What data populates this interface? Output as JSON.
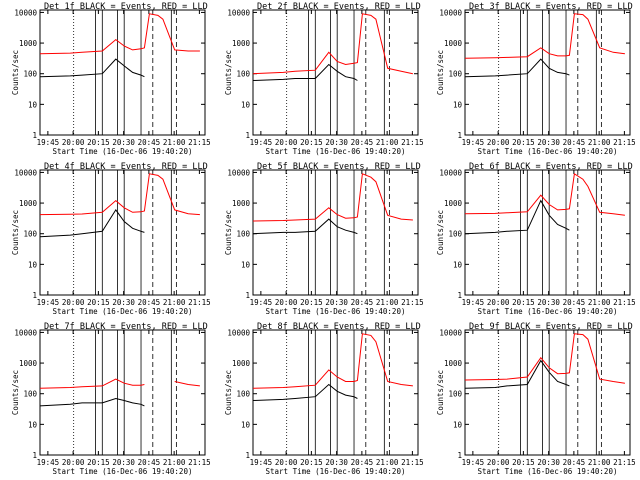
{
  "chart_data": {
    "type": "line",
    "figure": {
      "ylabel": "Counts/sec",
      "xlabel": "Start Time (16-Dec-06 19:40:20)",
      "yticks": [
        "1",
        "10",
        "100",
        "1000",
        "10000"
      ],
      "ylim": [
        1,
        12000
      ],
      "yscale": "log",
      "xticks": [
        "19:45",
        "20:00",
        "20:15",
        "20:30",
        "20:45",
        "21:00",
        "21:15"
      ],
      "xlim_minutes_after_start": [
        0,
        98
      ],
      "colors": {
        "events": "#000000",
        "lld": "#ff0000"
      }
    },
    "panels": [
      {
        "title": "Det 1f BLACK = Events, RED = LLD",
        "xlabel": "Start Time (16-Dec-06 19:40:20)",
        "x": [
          0,
          18,
          25,
          37,
          45,
          50,
          55,
          60,
          62,
          65,
          70,
          73,
          80,
          88,
          95
        ],
        "events": [
          80,
          85,
          90,
          100,
          300,
          180,
          110,
          90,
          80,
          null,
          null,
          null,
          null,
          null,
          null
        ],
        "lld": [
          450,
          470,
          500,
          550,
          1300,
          800,
          600,
          650,
          700,
          9000,
          8000,
          6000,
          600,
          550,
          550
        ]
      },
      {
        "title": "Det 2f BLACK = Events, RED = LLD",
        "xlabel": "Start Time (16-Dec-06 19:40:20)",
        "x": [
          0,
          18,
          25,
          37,
          45,
          50,
          55,
          60,
          62,
          65,
          70,
          73,
          80,
          88,
          95
        ],
        "events": [
          60,
          65,
          70,
          70,
          200,
          120,
          80,
          70,
          60,
          null,
          null,
          null,
          null,
          null,
          null
        ],
        "lld": [
          100,
          110,
          120,
          130,
          500,
          250,
          200,
          220,
          230,
          9000,
          8000,
          6000,
          150,
          120,
          100
        ]
      },
      {
        "title": "Det 3f BLACK = Events, RED = LLD",
        "xlabel": "Start Time (16-Dec-06 19:40:20)",
        "x": [
          0,
          18,
          25,
          37,
          45,
          50,
          55,
          60,
          62,
          65,
          70,
          73,
          80,
          88,
          95
        ],
        "events": [
          80,
          85,
          90,
          100,
          300,
          150,
          110,
          100,
          90,
          null,
          null,
          null,
          null,
          null,
          null
        ],
        "lld": [
          320,
          330,
          340,
          360,
          700,
          450,
          380,
          380,
          400,
          9000,
          8500,
          6000,
          700,
          500,
          450
        ]
      },
      {
        "title": "Det 4f BLACK = Events, RED = LLD",
        "xlabel": "Start Time (16-Dec-06 19:40:20)",
        "x": [
          0,
          18,
          25,
          37,
          45,
          50,
          55,
          60,
          62,
          65,
          70,
          73,
          80,
          88,
          95
        ],
        "events": [
          80,
          90,
          100,
          120,
          600,
          250,
          150,
          120,
          110,
          null,
          null,
          null,
          null,
          null,
          null
        ],
        "lld": [
          420,
          430,
          440,
          500,
          1200,
          700,
          500,
          520,
          550,
          9000,
          8000,
          6000,
          600,
          450,
          420
        ]
      },
      {
        "title": "Det 5f BLACK = Events, RED = LLD",
        "xlabel": "Start Time (16-Dec-06 19:40:20)",
        "x": [
          0,
          18,
          25,
          37,
          45,
          50,
          55,
          60,
          62,
          65,
          70,
          73,
          80,
          88,
          95
        ],
        "events": [
          100,
          110,
          110,
          120,
          300,
          170,
          130,
          110,
          100,
          null,
          null,
          null,
          null,
          null,
          null
        ],
        "lld": [
          260,
          270,
          280,
          300,
          700,
          420,
          320,
          330,
          350,
          9000,
          7000,
          5000,
          400,
          300,
          280
        ]
      },
      {
        "title": "Det 6f BLACK = Events, RED = LLD",
        "xlabel": "Start Time (16-Dec-06 19:40:20)",
        "x": [
          0,
          18,
          25,
          37,
          45,
          50,
          55,
          60,
          62,
          65,
          70,
          73,
          80,
          88,
          95
        ],
        "events": [
          100,
          110,
          120,
          130,
          1200,
          400,
          200,
          150,
          130,
          null,
          null,
          null,
          null,
          null,
          null
        ],
        "lld": [
          450,
          460,
          480,
          520,
          1800,
          900,
          600,
          620,
          650,
          9000,
          6000,
          3500,
          500,
          450,
          400
        ]
      },
      {
        "title": "Det 7f BLACK = Events, RED = LLD",
        "xlabel": "Start Time (16-Dec-06 19:40:20)",
        "x": [
          0,
          18,
          25,
          37,
          45,
          50,
          55,
          60,
          62,
          65,
          70,
          73,
          80,
          88,
          95
        ],
        "events": [
          40,
          45,
          50,
          50,
          70,
          60,
          50,
          45,
          40,
          null,
          null,
          null,
          null,
          null,
          null
        ],
        "lld": [
          150,
          160,
          170,
          180,
          300,
          220,
          190,
          190,
          200,
          null,
          null,
          null,
          250,
          200,
          180
        ]
      },
      {
        "title": "Det 8f BLACK = Events, RED = LLD",
        "xlabel": "Start Time (16-Dec-06 19:40:20)",
        "x": [
          0,
          18,
          25,
          37,
          45,
          50,
          55,
          60,
          62,
          65,
          70,
          73,
          80,
          88,
          95
        ],
        "events": [
          60,
          65,
          70,
          80,
          200,
          120,
          90,
          80,
          70,
          null,
          null,
          null,
          null,
          null,
          null
        ],
        "lld": [
          150,
          160,
          170,
          190,
          600,
          350,
          250,
          250,
          270,
          9000,
          8000,
          5000,
          250,
          200,
          180
        ]
      },
      {
        "title": "Det 9f BLACK = Events, RED = LLD",
        "xlabel": "Start Time (16-Dec-06 19:40:20)",
        "x": [
          0,
          18,
          25,
          37,
          45,
          50,
          55,
          60,
          62,
          65,
          70,
          73,
          80,
          88,
          95
        ],
        "events": [
          150,
          160,
          180,
          200,
          1200,
          500,
          250,
          200,
          180,
          null,
          null,
          null,
          null,
          null,
          null
        ],
        "lld": [
          280,
          290,
          300,
          350,
          1500,
          700,
          450,
          460,
          480,
          9000,
          8500,
          6000,
          300,
          250,
          220
        ]
      }
    ]
  }
}
